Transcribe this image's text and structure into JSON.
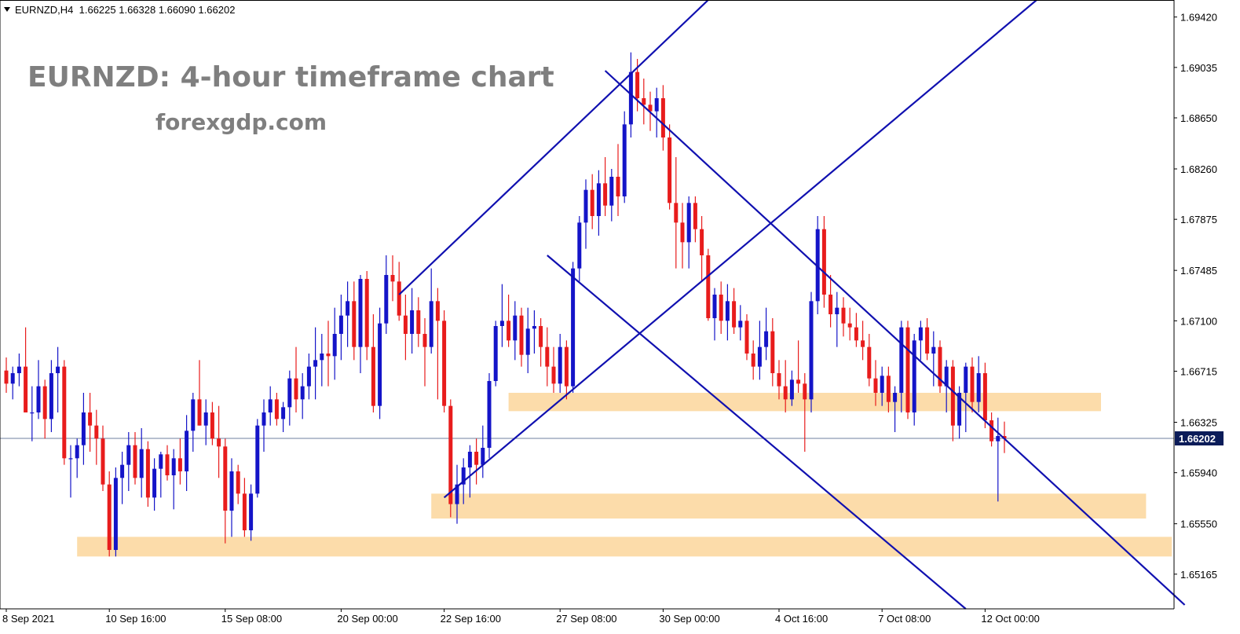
{
  "header": {
    "symbol_info": "EURNZD,H4  1.66225 1.66328 1.66090 1.66202"
  },
  "annotations": {
    "title": "EURNZD: 4-hour timeframe chart",
    "website": "forexgdp.com"
  },
  "colors": {
    "bull": "#1414c8",
    "bear": "#e81c1c",
    "trendline": "#1010b0",
    "zone": "#fcdcaa",
    "price_tag_bg": "#0b1c59",
    "axis": "#000000"
  },
  "chart_data": {
    "type": "candlestick",
    "symbol": "EURNZD",
    "timeframe": "H4",
    "ylim": [
      1.649,
      1.6955
    ],
    "y_ticks": [
      "1.69420",
      "1.69035",
      "1.68650",
      "1.68260",
      "1.67875",
      "1.67485",
      "1.67100",
      "1.66715",
      "1.66325",
      "1.65940",
      "1.65550",
      "1.65165"
    ],
    "x_ticks": [
      {
        "label": "8 Sep 2021",
        "index": 0
      },
      {
        "label": "10 Sep 16:00",
        "index": 16
      },
      {
        "label": "15 Sep 08:00",
        "index": 34
      },
      {
        "label": "20 Sep 00:00",
        "index": 52
      },
      {
        "label": "22 Sep 16:00",
        "index": 68
      },
      {
        "label": "27 Sep 08:00",
        "index": 86
      },
      {
        "label": "30 Sep 00:00",
        "index": 102
      },
      {
        "label": "4 Oct 16:00",
        "index": 120
      },
      {
        "label": "7 Oct 08:00",
        "index": 136
      },
      {
        "label": "12 Oct 00:00",
        "index": 152
      }
    ],
    "current_price": "1.66202",
    "ohlc_last": {
      "open": 1.66225,
      "high": 1.66328,
      "low": 1.6609,
      "close": 1.66202
    },
    "trendlines": [
      {
        "from": [
          61,
          1.673
        ],
        "to": [
          109,
          1.6955
        ]
      },
      {
        "from": [
          68,
          1.6575
        ],
        "to": [
          160,
          1.6955
        ]
      },
      {
        "from": [
          93,
          1.6901
        ],
        "to": [
          183,
          1.6493
        ]
      },
      {
        "from": [
          84,
          1.676
        ],
        "to": [
          149,
          1.649
        ]
      }
    ],
    "zones": [
      {
        "from": 11,
        "to": 181,
        "low": 1.653,
        "high": 1.6545
      },
      {
        "from": 66,
        "to": 177,
        "low": 1.6559,
        "high": 1.6578
      },
      {
        "from": 78,
        "to": 170,
        "low": 1.6641,
        "high": 1.6655
      }
    ],
    "candles": [
      [
        1.6672,
        1.6682,
        1.6655,
        1.6662
      ],
      [
        1.6662,
        1.6675,
        1.665,
        1.667
      ],
      [
        1.667,
        1.6685,
        1.666,
        1.6675
      ],
      [
        1.6675,
        1.6705,
        1.664,
        1.664
      ],
      [
        1.664,
        1.666,
        1.6618,
        1.664
      ],
      [
        1.664,
        1.668,
        1.6635,
        1.666
      ],
      [
        1.666,
        1.6665,
        1.662,
        1.6635
      ],
      [
        1.6635,
        1.668,
        1.6625,
        1.667
      ],
      [
        1.667,
        1.669,
        1.664,
        1.6675
      ],
      [
        1.6675,
        1.668,
        1.66,
        1.6605
      ],
      [
        1.6605,
        1.6615,
        1.6575,
        1.6605
      ],
      [
        1.6605,
        1.662,
        1.659,
        1.6615
      ],
      [
        1.6615,
        1.6655,
        1.66,
        1.664
      ],
      [
        1.664,
        1.6655,
        1.661,
        1.663
      ],
      [
        1.663,
        1.6642,
        1.66,
        1.662
      ],
      [
        1.662,
        1.663,
        1.658,
        1.6585
      ],
      [
        1.6585,
        1.6595,
        1.653,
        1.6535
      ],
      [
        1.6535,
        1.6598,
        1.653,
        1.659
      ],
      [
        1.659,
        1.661,
        1.657,
        1.66
      ],
      [
        1.66,
        1.6625,
        1.658,
        1.6615
      ],
      [
        1.6615,
        1.6625,
        1.6585,
        1.659
      ],
      [
        1.659,
        1.6628,
        1.6575,
        1.6612
      ],
      [
        1.6612,
        1.6618,
        1.6568,
        1.6575
      ],
      [
        1.6575,
        1.6605,
        1.6565,
        1.6597
      ],
      [
        1.6597,
        1.661,
        1.6575,
        1.6608
      ],
      [
        1.6608,
        1.6615,
        1.6588,
        1.6592
      ],
      [
        1.6592,
        1.6612,
        1.6566,
        1.6605
      ],
      [
        1.6605,
        1.662,
        1.6585,
        1.6595
      ],
      [
        1.6595,
        1.6638,
        1.658,
        1.6626
      ],
      [
        1.6626,
        1.6655,
        1.661,
        1.665
      ],
      [
        1.665,
        1.668,
        1.663,
        1.663
      ],
      [
        1.663,
        1.665,
        1.6615,
        1.664
      ],
      [
        1.664,
        1.6648,
        1.6615,
        1.662
      ],
      [
        1.662,
        1.6645,
        1.659,
        1.6614
      ],
      [
        1.6614,
        1.662,
        1.654,
        1.6565
      ],
      [
        1.6565,
        1.6605,
        1.6545,
        1.6595
      ],
      [
        1.6595,
        1.66,
        1.657,
        1.6578
      ],
      [
        1.6578,
        1.659,
        1.6545,
        1.655
      ],
      [
        1.655,
        1.6585,
        1.6542,
        1.6578
      ],
      [
        1.6578,
        1.6635,
        1.6575,
        1.663
      ],
      [
        1.663,
        1.665,
        1.661,
        1.664
      ],
      [
        1.664,
        1.666,
        1.663,
        1.665
      ],
      [
        1.665,
        1.6655,
        1.663,
        1.6635
      ],
      [
        1.6635,
        1.6648,
        1.6625,
        1.6644
      ],
      [
        1.6644,
        1.6672,
        1.663,
        1.6666
      ],
      [
        1.6666,
        1.669,
        1.664,
        1.665
      ],
      [
        1.665,
        1.667,
        1.6635,
        1.666
      ],
      [
        1.666,
        1.6685,
        1.665,
        1.6675
      ],
      [
        1.6675,
        1.6705,
        1.665,
        1.668
      ],
      [
        1.668,
        1.67,
        1.666,
        1.6685
      ],
      [
        1.6685,
        1.671,
        1.666,
        1.6683
      ],
      [
        1.6683,
        1.672,
        1.6665,
        1.67
      ],
      [
        1.67,
        1.673,
        1.668,
        1.6714
      ],
      [
        1.6714,
        1.674,
        1.669,
        1.6725
      ],
      [
        1.6725,
        1.674,
        1.668,
        1.669
      ],
      [
        1.669,
        1.6745,
        1.667,
        1.6742
      ],
      [
        1.6742,
        1.6748,
        1.668,
        1.669
      ],
      [
        1.669,
        1.6715,
        1.664,
        1.6645
      ],
      [
        1.6645,
        1.672,
        1.6635,
        1.6708
      ],
      [
        1.6708,
        1.676,
        1.67,
        1.6745
      ],
      [
        1.6745,
        1.676,
        1.6725,
        1.674
      ],
      [
        1.674,
        1.6755,
        1.671,
        1.6714
      ],
      [
        1.6714,
        1.673,
        1.668,
        1.67
      ],
      [
        1.67,
        1.6735,
        1.6685,
        1.6718
      ],
      [
        1.6718,
        1.6728,
        1.669,
        1.67
      ],
      [
        1.67,
        1.6712,
        1.666,
        1.669
      ],
      [
        1.669,
        1.675,
        1.6685,
        1.6725
      ],
      [
        1.6725,
        1.6735,
        1.665,
        1.671
      ],
      [
        1.671,
        1.6718,
        1.664,
        1.6645
      ],
      [
        1.6645,
        1.665,
        1.656,
        1.657
      ],
      [
        1.657,
        1.66,
        1.6555,
        1.6585
      ],
      [
        1.6585,
        1.6605,
        1.657,
        1.6598
      ],
      [
        1.6598,
        1.6615,
        1.6575,
        1.661
      ],
      [
        1.661,
        1.662,
        1.6585,
        1.66
      ],
      [
        1.66,
        1.663,
        1.659,
        1.6613
      ],
      [
        1.6613,
        1.667,
        1.6605,
        1.6664
      ],
      [
        1.6664,
        1.671,
        1.666,
        1.6706
      ],
      [
        1.6706,
        1.6738,
        1.669,
        1.671
      ],
      [
        1.671,
        1.673,
        1.669,
        1.6695
      ],
      [
        1.6695,
        1.6725,
        1.668,
        1.6714
      ],
      [
        1.6714,
        1.672,
        1.6675,
        1.6684
      ],
      [
        1.6684,
        1.672,
        1.667,
        1.6704
      ],
      [
        1.6704,
        1.6718,
        1.6685,
        1.6706
      ],
      [
        1.6706,
        1.6712,
        1.6675,
        1.669
      ],
      [
        1.669,
        1.6705,
        1.666,
        1.6675
      ],
      [
        1.6675,
        1.669,
        1.6655,
        1.6662
      ],
      [
        1.6662,
        1.67,
        1.6655,
        1.669
      ],
      [
        1.669,
        1.6695,
        1.665,
        1.666
      ],
      [
        1.666,
        1.6755,
        1.6655,
        1.675
      ],
      [
        1.675,
        1.679,
        1.674,
        1.6785
      ],
      [
        1.6785,
        1.6818,
        1.6765,
        1.681
      ],
      [
        1.681,
        1.6822,
        1.678,
        1.679
      ],
      [
        1.679,
        1.6825,
        1.6775,
        1.6815
      ],
      [
        1.6815,
        1.6835,
        1.679,
        1.6798
      ],
      [
        1.6798,
        1.6826,
        1.6786,
        1.682
      ],
      [
        1.682,
        1.6845,
        1.679,
        1.6805
      ],
      [
        1.6805,
        1.687,
        1.68,
        1.686
      ],
      [
        1.686,
        1.6915,
        1.685,
        1.69
      ],
      [
        1.69,
        1.691,
        1.687,
        1.688
      ],
      [
        1.688,
        1.6895,
        1.686,
        1.6875
      ],
      [
        1.6875,
        1.6885,
        1.6855,
        1.687
      ],
      [
        1.687,
        1.6888,
        1.685,
        1.688
      ],
      [
        1.688,
        1.689,
        1.684,
        1.685
      ],
      [
        1.685,
        1.686,
        1.6795,
        1.68
      ],
      [
        1.68,
        1.6835,
        1.675,
        1.6785
      ],
      [
        1.6785,
        1.68,
        1.675,
        1.677
      ],
      [
        1.677,
        1.6805,
        1.675,
        1.68
      ],
      [
        1.68,
        1.6805,
        1.677,
        1.678
      ],
      [
        1.678,
        1.679,
        1.674,
        1.676
      ],
      [
        1.676,
        1.6765,
        1.671,
        1.6712
      ],
      [
        1.6712,
        1.6735,
        1.6695,
        1.673
      ],
      [
        1.673,
        1.674,
        1.67,
        1.671
      ],
      [
        1.671,
        1.6738,
        1.6695,
        1.6725
      ],
      [
        1.6725,
        1.6735,
        1.67,
        1.6705
      ],
      [
        1.6705,
        1.6722,
        1.6695,
        1.671
      ],
      [
        1.671,
        1.6715,
        1.668,
        1.6685
      ],
      [
        1.6685,
        1.6695,
        1.6665,
        1.6675
      ],
      [
        1.6675,
        1.671,
        1.6665,
        1.669
      ],
      [
        1.669,
        1.672,
        1.668,
        1.6702
      ],
      [
        1.6702,
        1.6712,
        1.666,
        1.667
      ],
      [
        1.667,
        1.668,
        1.665,
        1.666
      ],
      [
        1.666,
        1.668,
        1.664,
        1.665
      ],
      [
        1.665,
        1.6672,
        1.6645,
        1.6665
      ],
      [
        1.6665,
        1.6695,
        1.6655,
        1.6662
      ],
      [
        1.6662,
        1.667,
        1.661,
        1.665
      ],
      [
        1.665,
        1.6732,
        1.664,
        1.6725
      ],
      [
        1.6725,
        1.679,
        1.6715,
        1.678
      ],
      [
        1.678,
        1.679,
        1.672,
        1.673
      ],
      [
        1.673,
        1.6745,
        1.6705,
        1.6715
      ],
      [
        1.6715,
        1.6732,
        1.669,
        1.672
      ],
      [
        1.672,
        1.6728,
        1.6698,
        1.6708
      ],
      [
        1.6708,
        1.672,
        1.6695,
        1.6705
      ],
      [
        1.6705,
        1.6716,
        1.669,
        1.6695
      ],
      [
        1.6695,
        1.671,
        1.668,
        1.669
      ],
      [
        1.669,
        1.67,
        1.666,
        1.6666
      ],
      [
        1.6666,
        1.668,
        1.6645,
        1.6655
      ],
      [
        1.6655,
        1.6675,
        1.6645,
        1.6668
      ],
      [
        1.6668,
        1.6675,
        1.664,
        1.6648
      ],
      [
        1.6648,
        1.666,
        1.6625,
        1.6655
      ],
      [
        1.6655,
        1.671,
        1.664,
        1.6705
      ],
      [
        1.6705,
        1.671,
        1.6635,
        1.664
      ],
      [
        1.664,
        1.67,
        1.663,
        1.6695
      ],
      [
        1.6695,
        1.671,
        1.668,
        1.6705
      ],
      [
        1.6705,
        1.6712,
        1.668,
        1.6685
      ],
      [
        1.6685,
        1.6702,
        1.666,
        1.669
      ],
      [
        1.669,
        1.6695,
        1.6655,
        1.666
      ],
      [
        1.666,
        1.668,
        1.664,
        1.6675
      ],
      [
        1.6675,
        1.668,
        1.6618,
        1.663
      ],
      [
        1.663,
        1.666,
        1.662,
        1.6655
      ],
      [
        1.6655,
        1.6678,
        1.6625,
        1.6675
      ],
      [
        1.6675,
        1.6682,
        1.664,
        1.6648
      ],
      [
        1.6648,
        1.6683,
        1.664,
        1.667
      ],
      [
        1.667,
        1.6678,
        1.6628,
        1.6634
      ],
      [
        1.6634,
        1.664,
        1.6614,
        1.6618
      ],
      [
        1.6618,
        1.6636,
        1.6572,
        1.6622
      ],
      [
        1.6622,
        1.6633,
        1.6609,
        1.662
      ]
    ]
  }
}
